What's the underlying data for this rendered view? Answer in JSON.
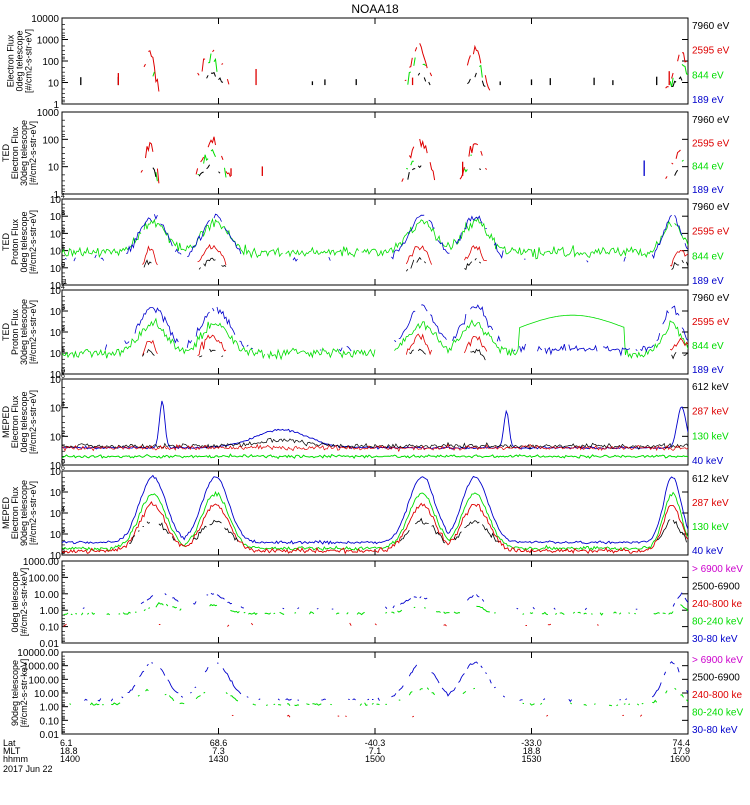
{
  "title": "NOAA18",
  "colors": {
    "black": "#000000",
    "red": "#dd0000",
    "green": "#00dd00",
    "blue": "#0000cc",
    "magenta": "#cc00cc"
  },
  "chart_data": [
    {
      "type": "line",
      "scale": "log",
      "ylabel": [
        "Electron Flux",
        "0deg telescope",
        "[#/cm2-s-str-eV]"
      ],
      "yticks": [
        "10000",
        "1000",
        "100",
        "10",
        "1"
      ],
      "legend": [
        {
          "label": "7960 eV",
          "color": "black"
        },
        {
          "label": "2595 eV",
          "color": "red"
        },
        {
          "label": "844 eV",
          "color": "green"
        },
        {
          "label": "189 eV",
          "color": "blue"
        }
      ]
    },
    {
      "type": "line",
      "scale": "log",
      "ylabel": [
        "TED",
        "Electron Flux",
        "30deg telescope",
        "[#/cm2-s-str-eV]"
      ],
      "yticks": [
        "1000",
        "100",
        "10",
        "1"
      ],
      "legend": [
        {
          "label": "7960 eV",
          "color": "black"
        },
        {
          "label": "2595 eV",
          "color": "red"
        },
        {
          "label": "844 eV",
          "color": "green"
        },
        {
          "label": "189 eV",
          "color": "blue"
        }
      ]
    },
    {
      "type": "line",
      "scale": "log",
      "ylabel": [
        "TED",
        "Proton Flux",
        "0deg telescope",
        "[#/cm2-s-str-eV]"
      ],
      "yticks": [
        "10",
        "10",
        "10",
        "10",
        "10",
        "10"
      ],
      "yexp": [
        "4",
        "3",
        "2",
        "1",
        "0",
        "-1"
      ],
      "legend": [
        {
          "label": "7960 eV",
          "color": "black"
        },
        {
          "label": "2595 eV",
          "color": "red"
        },
        {
          "label": "844 eV",
          "color": "green"
        },
        {
          "label": "189 eV",
          "color": "blue"
        }
      ]
    },
    {
      "type": "line",
      "scale": "log",
      "ylabel": [
        "TED",
        "Proton Flux",
        "30deg telescope",
        "[#/cm2-s-str-eV]"
      ],
      "yticks": [
        "10",
        "10",
        "10",
        "10",
        "10"
      ],
      "yexp": [
        "4",
        "3",
        "2",
        "1",
        "0"
      ],
      "legend": [
        {
          "label": "7960 eV",
          "color": "black"
        },
        {
          "label": "2595 eV",
          "color": "red"
        },
        {
          "label": "844 eV",
          "color": "green"
        },
        {
          "label": "189 eV",
          "color": "blue"
        }
      ]
    },
    {
      "type": "line",
      "scale": "log",
      "ylabel": [
        "MEPED",
        "Electron Flux",
        "0deg telescope",
        "[#/cm2-s-str-eV]"
      ],
      "yticks": [
        "10",
        "10",
        "10",
        "10"
      ],
      "yexp": [
        "6",
        "4",
        "2",
        "0"
      ],
      "legend": [
        {
          "label": "612 keV",
          "color": "black"
        },
        {
          "label": "287 keV",
          "color": "red"
        },
        {
          "label": "130 keV",
          "color": "green"
        },
        {
          "label": "40 keV",
          "color": "blue"
        }
      ]
    },
    {
      "type": "line",
      "scale": "log",
      "ylabel": [
        "MEPED",
        "Electron Flux",
        "90deg telescope",
        "[#/cm2-s-str-eV]"
      ],
      "yticks": [
        "10",
        "10",
        "10",
        "10",
        "10"
      ],
      "yexp": [
        "6",
        "5",
        "4",
        "3",
        "2"
      ],
      "legend": [
        {
          "label": "612 keV",
          "color": "black"
        },
        {
          "label": "287 keV",
          "color": "red"
        },
        {
          "label": "130 keV",
          "color": "green"
        },
        {
          "label": "40 keV",
          "color": "blue"
        }
      ]
    },
    {
      "type": "line",
      "scale": "log",
      "ylabel": [
        "0deg telescope",
        "[#/cm2-s-str-keV]"
      ],
      "yticks": [
        "1000.00",
        "100.00",
        "10.00",
        "1.00",
        "0.10",
        "0.01"
      ],
      "legend": [
        {
          "label": "> 6900 keV",
          "color": "magenta"
        },
        {
          "label": "2500-6900",
          "color": "black"
        },
        {
          "label": "240-800 ke",
          "color": "red"
        },
        {
          "label": "80-240 keV",
          "color": "green"
        },
        {
          "label": "30-80 keV",
          "color": "blue"
        }
      ]
    },
    {
      "type": "line",
      "scale": "log",
      "ylabel": [
        "90deg telescope",
        "[#/cm2-s-str-keV]"
      ],
      "yticks": [
        "10000.00",
        "1000.00",
        "100.00",
        "10.00",
        "1.00",
        "0.10",
        "0.01"
      ],
      "legend": [
        {
          "label": "> 6900 keV",
          "color": "magenta"
        },
        {
          "label": "2500-6900",
          "color": "black"
        },
        {
          "label": "240-800 ke",
          "color": "red"
        },
        {
          "label": "80-240 keV",
          "color": "green"
        },
        {
          "label": "30-80 keV",
          "color": "blue"
        }
      ]
    }
  ],
  "xaxis": {
    "row_labels": [
      "Lat",
      "MLT",
      "hhmm"
    ],
    "date": "2017 Jun 22",
    "columns": [
      {
        "lat": "6.1",
        "mlt": "18.8",
        "hhmm": "1400"
      },
      {
        "lat": "68.6",
        "mlt": "7.3",
        "hhmm": "1430"
      },
      {
        "lat": "-40.3",
        "mlt": "7.1",
        "hhmm": "1500"
      },
      {
        "lat": "-33.0",
        "mlt": "18.8",
        "hhmm": "1530"
      },
      {
        "lat": "74.4",
        "mlt": "17.9",
        "hhmm": "1600"
      }
    ]
  }
}
